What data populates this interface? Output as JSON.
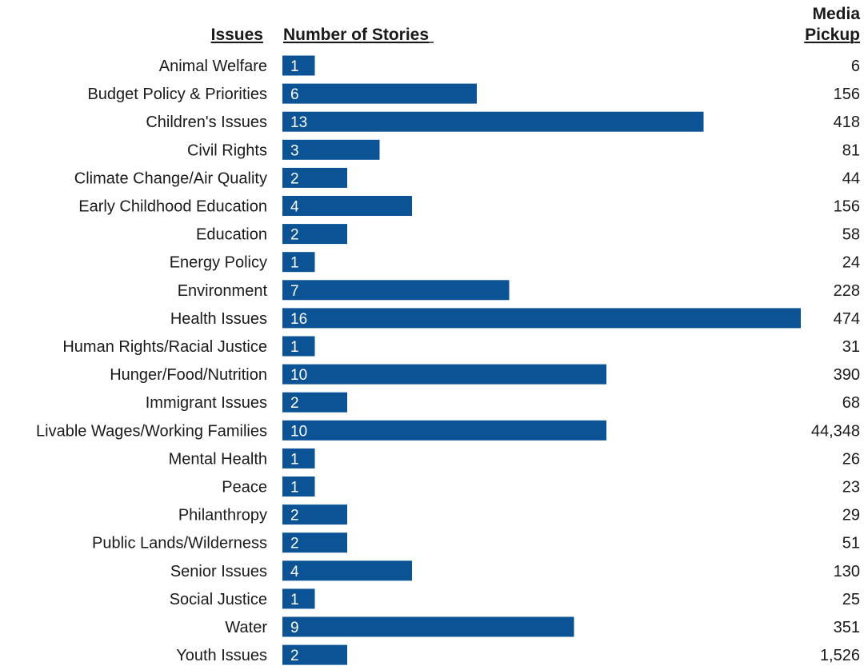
{
  "headers": {
    "issues": "Issues",
    "stories": "Number of Stories",
    "pickup_line1": "Media",
    "pickup_line2": "Pickup"
  },
  "colors": {
    "bar": "#0b5394",
    "text": "#1a1a1a"
  },
  "chart_data": {
    "type": "bar",
    "orientation": "horizontal",
    "xlim": [
      0,
      16
    ],
    "categories": [
      "Animal Welfare",
      "Budget Policy & Priorities",
      "Children's Issues",
      "Civil Rights",
      "Climate Change/Air Quality",
      "Early Childhood Education",
      "Education",
      "Energy Policy",
      "Environment",
      "Health Issues",
      "Human Rights/Racial Justice",
      "Hunger/Food/Nutrition",
      "Immigrant Issues",
      "Livable Wages/Working Families",
      "Mental Health",
      "Peace",
      "Philanthropy",
      "Public Lands/Wilderness",
      "Senior Issues",
      "Social Justice",
      "Water",
      "Youth Issues"
    ],
    "series": [
      {
        "values": [
          1,
          6,
          13,
          3,
          2,
          4,
          2,
          1,
          7,
          16,
          1,
          10,
          2,
          10,
          1,
          1,
          2,
          2,
          4,
          1,
          9,
          2
        ]
      }
    ],
    "media_pickup": [
      "6",
      "156",
      "418",
      "81",
      "44",
      "156",
      "58",
      "24",
      "228",
      "474",
      "31",
      "390",
      "68",
      "44,348",
      "26",
      "23",
      "29",
      "51",
      "130",
      "25",
      "351",
      "1,526"
    ]
  }
}
